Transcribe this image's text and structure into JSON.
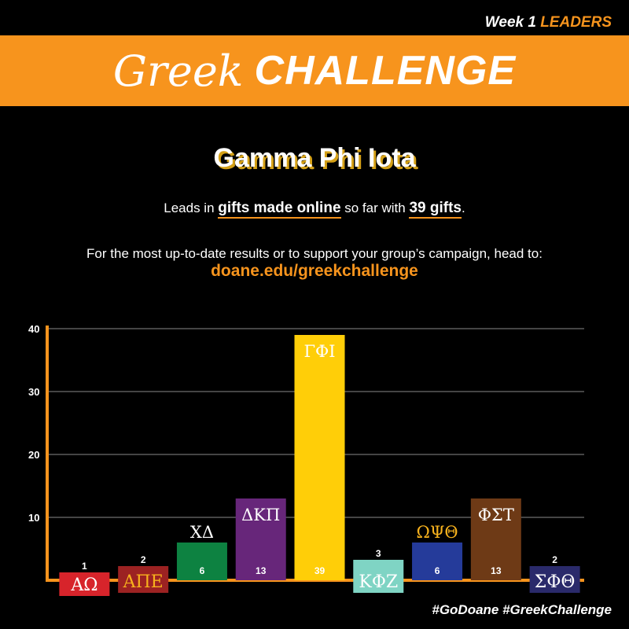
{
  "header": {
    "week_label": "Week 1",
    "leaders_label": "LEADERS",
    "title_script": "Greek",
    "title_bold": "CHALLENGE"
  },
  "leader": {
    "name": "Gamma Phi Iota",
    "text_before": "Leads in",
    "emphasis_category": "gifts made online",
    "text_middle": "so far with",
    "emphasis_count": "39 gifts",
    "text_after": "."
  },
  "info": {
    "text": "For the most up-to-date results or to support your group’s campaign, head to:",
    "link": "doane.edu/greekchallenge"
  },
  "footer": {
    "hashtags": "#GoDoane #GreekChallenge"
  },
  "colors": {
    "accent": "#f7941d",
    "background": "#000000"
  },
  "chart_data": {
    "type": "bar",
    "categories": [
      "ΑΩ",
      "ΑΠΕ",
      "ΧΔ",
      "ΔΚΠ",
      "ΓΦΙ",
      "ΚΦΖ",
      "ΩΨΘ",
      "ΦΣΤ",
      "ΣΦΘ"
    ],
    "values": [
      1,
      2,
      6,
      13,
      39,
      3,
      6,
      13,
      2
    ],
    "value_labels": [
      "1",
      "2",
      "6",
      "13",
      "39",
      "3",
      "6",
      "13",
      "2"
    ],
    "colors": [
      "#d7242b",
      "#9c2222",
      "#0d8241",
      "#67267a",
      "#ffce08",
      "#7fd4c4",
      "#253b9a",
      "#6e3a16",
      "#2a2a6b"
    ],
    "yticks": [
      10,
      20,
      30,
      40
    ],
    "ylim": [
      0,
      40
    ],
    "grid": true
  }
}
